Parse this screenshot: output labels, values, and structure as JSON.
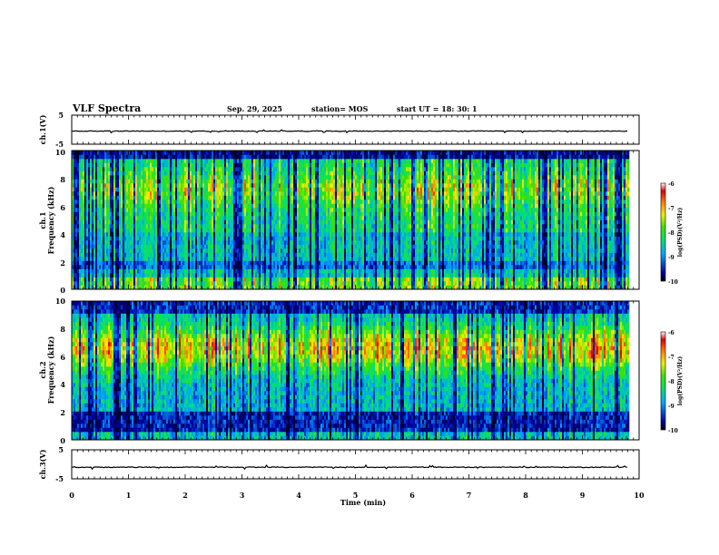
{
  "header": {
    "title": "VLF Spectra",
    "date": "Sep. 29, 2025",
    "station": "station= MOS",
    "start_ut": "start UT =   18: 30: 1"
  },
  "chart_data": {
    "type": "heatmap",
    "title": "VLF Spectra",
    "x": {
      "label": "Time (min)",
      "range": [
        0,
        10
      ],
      "ticks": [
        "0",
        "1",
        "2",
        "3",
        "4",
        "5",
        "6",
        "7",
        "8",
        "9",
        "10"
      ]
    },
    "panels": [
      {
        "name": "ch1-waveform",
        "type": "line",
        "ylabel": "ch.1(V)",
        "ylim": [
          -5,
          5
        ],
        "yticks": [
          "5",
          "-5"
        ],
        "level": -0.5
      },
      {
        "name": "ch1-spectrogram",
        "type": "heatmap",
        "ylabel_top": "ch.1",
        "ylabel": "Frequency (kHz)",
        "ylim": [
          0,
          10
        ],
        "yticks": [
          "0",
          "2",
          "4",
          "6",
          "8",
          "10"
        ],
        "colorbar": {
          "label": "log(PSD)(V²/Hz)",
          "range": [
            -10,
            -6
          ],
          "ticks": [
            "-6",
            "-7",
            "-8",
            "-9",
            "-10"
          ]
        }
      },
      {
        "name": "ch2-spectrogram",
        "type": "heatmap",
        "ylabel_top": "ch.2",
        "ylabel": "Frequency (kHz)",
        "ylim": [
          0,
          10
        ],
        "yticks": [
          "0",
          "2",
          "4",
          "6",
          "8",
          "10"
        ],
        "colorbar": {
          "label": "log(PSD)(V²/Hz)",
          "range": [
            -10,
            -6
          ],
          "ticks": [
            "-6",
            "-7",
            "-8",
            "-9",
            "-10"
          ]
        }
      },
      {
        "name": "ch3-waveform",
        "type": "line",
        "ylabel": "ch.3(V)",
        "ylim": [
          -5,
          5
        ],
        "yticks": [
          "5",
          "-5"
        ],
        "level": -1.0
      }
    ]
  }
}
